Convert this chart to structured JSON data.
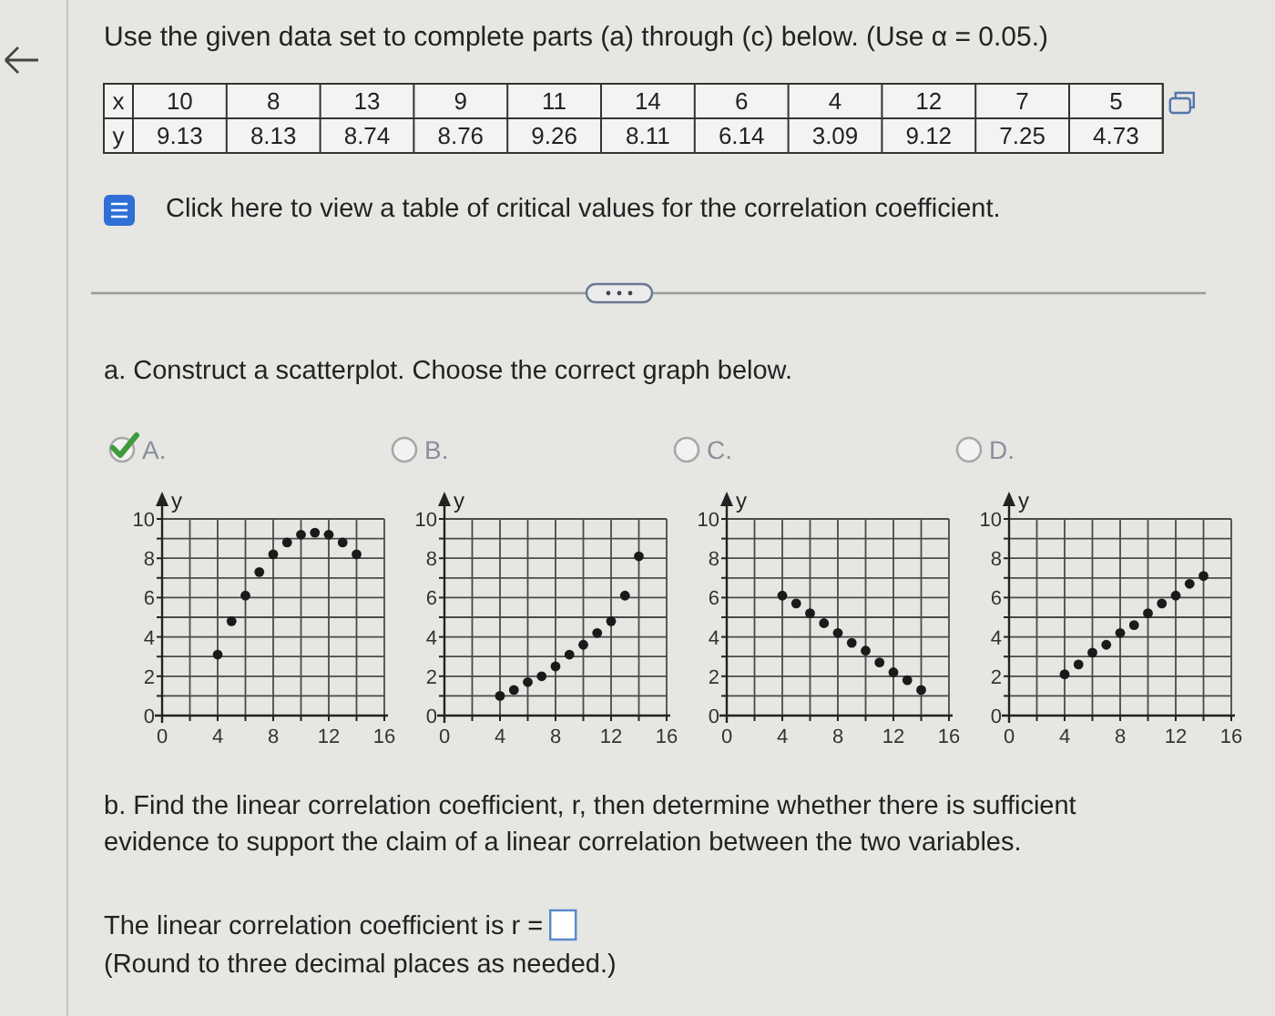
{
  "chart_data": [
    {
      "type": "other",
      "title": "Use the given data set to complete parts (a) through (c) below. (Use α = 0.05.)",
      "xlabel": "x",
      "ylabel": "y",
      "categories": [
        "10",
        "8",
        "13",
        "9",
        "11",
        "14",
        "6",
        "4",
        "12",
        "7",
        "5"
      ],
      "values": [
        9.13,
        8.13,
        8.74,
        8.76,
        9.26,
        8.11,
        6.14,
        3.09,
        9.12,
        7.25,
        4.73
      ],
      "data_labels": true,
      "annotations": [
        "Click here to view a table of critical values for the correlation coefficient.",
        "a. Construct a scatterplot. Choose the correct graph below."
      ]
    },
    {
      "type": "scatter",
      "title": "A.",
      "ylabel": "y",
      "x": [
        4,
        5,
        6,
        7,
        8,
        9,
        10,
        11,
        12,
        13,
        14
      ],
      "values": [
        3.1,
        4.8,
        6.1,
        7.3,
        8.2,
        8.8,
        9.2,
        9.3,
        9.2,
        8.8,
        8.2
      ],
      "color": "#1a1a1a",
      "xlim": [
        0,
        16
      ],
      "ylim": [
        0,
        10
      ],
      "xticks": [
        0,
        {
          "value": 2,
          "label": null
        },
        4,
        {
          "value": 6,
          "label": null
        },
        8,
        {
          "value": 10,
          "label": null
        },
        12,
        {
          "value": 14,
          "label": null
        },
        16
      ],
      "yticks": [
        0,
        {
          "value": 1,
          "label": null
        },
        2,
        {
          "value": 3,
          "label": null
        },
        4,
        {
          "value": 5,
          "label": null
        },
        6,
        {
          "value": 7,
          "label": null
        },
        8,
        {
          "value": 9,
          "label": null
        },
        10
      ],
      "grid": true,
      "marker": "circle"
    },
    {
      "type": "scatter",
      "title": "B.",
      "ylabel": "y",
      "x": [
        4,
        5,
        6,
        7,
        8,
        9,
        10,
        11,
        12,
        13,
        14
      ],
      "values": [
        1.0,
        1.3,
        1.7,
        2.0,
        2.5,
        3.1,
        3.6,
        4.2,
        4.8,
        6.1,
        8.1
      ],
      "color": "#1a1a1a",
      "xlim": [
        0,
        16
      ],
      "ylim": [
        0,
        10
      ],
      "xticks": [
        0,
        {
          "value": 2,
          "label": null
        },
        4,
        {
          "value": 6,
          "label": null
        },
        8,
        {
          "value": 10,
          "label": null
        },
        12,
        {
          "value": 14,
          "label": null
        },
        16
      ],
      "yticks": [
        0,
        {
          "value": 1,
          "label": null
        },
        2,
        {
          "value": 3,
          "label": null
        },
        4,
        {
          "value": 5,
          "label": null
        },
        6,
        {
          "value": 7,
          "label": null
        },
        8,
        {
          "value": 9,
          "label": null
        },
        10
      ],
      "grid": true,
      "marker": "circle"
    },
    {
      "type": "scatter",
      "title": "C.",
      "ylabel": "y",
      "x": [
        4,
        5,
        6,
        7,
        8,
        9,
        10,
        11,
        12,
        13,
        14
      ],
      "values": [
        6.1,
        5.7,
        5.2,
        4.7,
        4.2,
        3.7,
        3.3,
        2.7,
        2.2,
        1.8,
        1.3
      ],
      "color": "#1a1a1a",
      "xlim": [
        0,
        16
      ],
      "ylim": [
        0,
        10
      ],
      "xticks": [
        0,
        {
          "value": 2,
          "label": null
        },
        4,
        {
          "value": 6,
          "label": null
        },
        8,
        {
          "value": 10,
          "label": null
        },
        12,
        {
          "value": 14,
          "label": null
        },
        16
      ],
      "yticks": [
        0,
        {
          "value": 1,
          "label": null
        },
        2,
        {
          "value": 3,
          "label": null
        },
        4,
        {
          "value": 5,
          "label": null
        },
        6,
        {
          "value": 7,
          "label": null
        },
        8,
        {
          "value": 9,
          "label": null
        },
        10
      ],
      "grid": true,
      "marker": "circle"
    },
    {
      "type": "scatter",
      "title": "D.",
      "ylabel": "y",
      "x": [
        4,
        5,
        6,
        7,
        8,
        9,
        10,
        11,
        12,
        13,
        14
      ],
      "values": [
        2.1,
        2.6,
        3.2,
        3.6,
        4.2,
        4.6,
        5.2,
        5.7,
        6.1,
        6.7,
        7.1
      ],
      "color": "#1a1a1a",
      "xlim": [
        0,
        16
      ],
      "ylim": [
        0,
        10
      ],
      "xticks": [
        0,
        {
          "value": 2,
          "label": null
        },
        4,
        {
          "value": 6,
          "label": null
        },
        8,
        {
          "value": 10,
          "label": null
        },
        12,
        {
          "value": 14,
          "label": null
        },
        16
      ],
      "yticks": [
        0,
        {
          "value": 1,
          "label": null
        },
        2,
        {
          "value": 3,
          "label": null
        },
        4,
        {
          "value": 5,
          "label": null
        },
        6,
        {
          "value": 7,
          "label": null
        },
        8,
        {
          "value": 9,
          "label": null
        },
        10
      ],
      "grid": true,
      "marker": "circle"
    },
    {
      "type": "other",
      "annotations": [
        "b. Find the linear correlation coefficient, r, then determine whether there is sufficient evidence to support the claim of a linear correlation between the two variables.",
        "The linear correlation coefficient is r =",
        "(Round to three decimal places as needed.)"
      ]
    }
  ]
}
